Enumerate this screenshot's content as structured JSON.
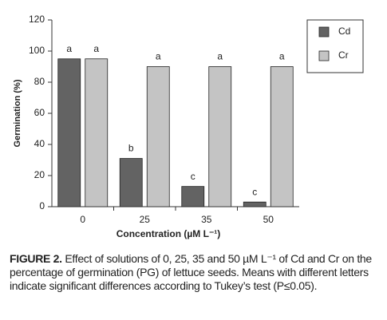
{
  "chart_data": {
    "type": "bar",
    "ylabel": "Germination (%)",
    "xlabel": "Concentration (µM L⁻¹)",
    "categories": [
      "0",
      "25",
      "35",
      "50"
    ],
    "series": [
      {
        "name": "Cd",
        "color": "#636363",
        "values": [
          95,
          31,
          13,
          3
        ],
        "letters": [
          "a",
          "b",
          "c",
          "c"
        ]
      },
      {
        "name": "Cr",
        "color": "#c4c4c4",
        "values": [
          95,
          90,
          90,
          90
        ],
        "letters": [
          "a",
          "a",
          "a",
          "a"
        ]
      }
    ],
    "ylim": [
      0,
      120
    ],
    "yticks": [
      0,
      20,
      40,
      60,
      80,
      100,
      120
    ],
    "grid": false,
    "legend": "right"
  },
  "caption": {
    "label": "FIGURE 2.",
    "text": "Effect of solutions of 0, 25, 35 and 50 µM L⁻¹ of Cd and Cr on the percentage of germination (PG) of lettuce seeds. Means with different letters indicate significant differences according to Tukey’s test (P≤0.05)."
  }
}
